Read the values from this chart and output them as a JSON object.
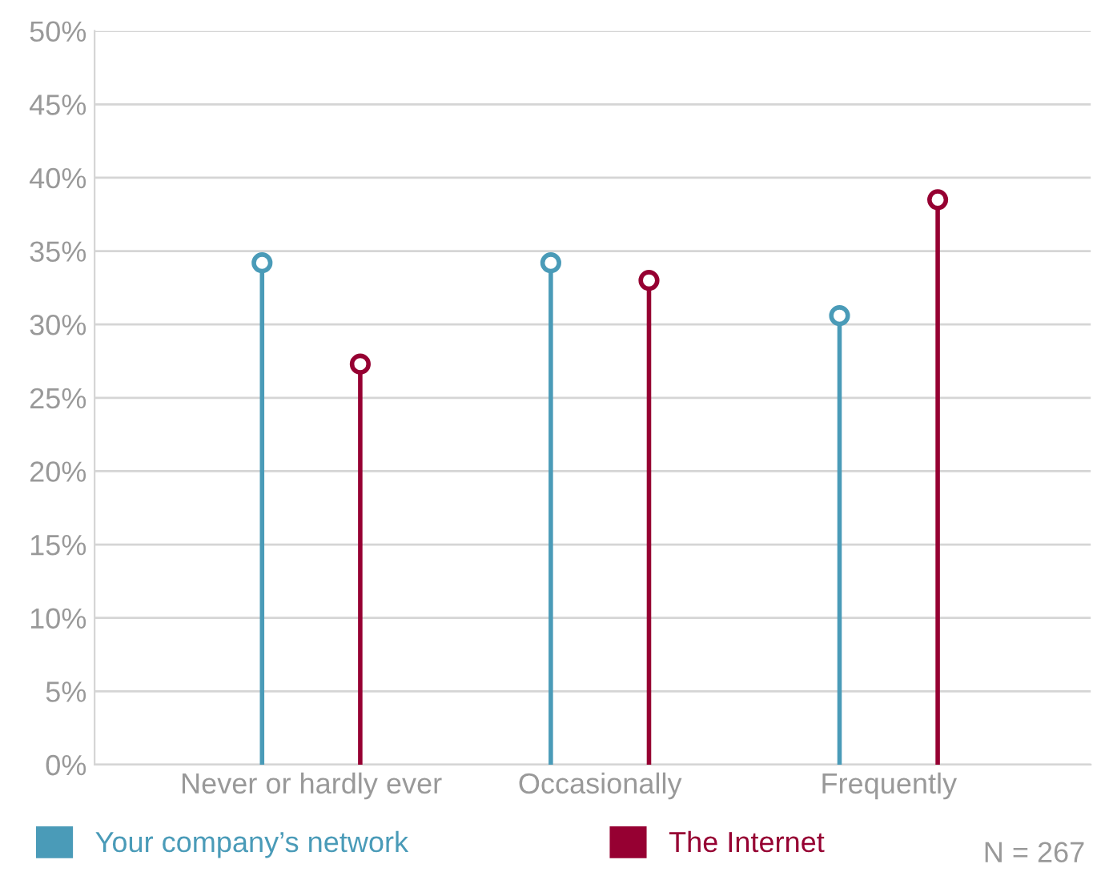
{
  "chart_data": {
    "type": "lollipop",
    "categories": [
      "Never or hardly ever",
      "Occasionally",
      "Frequently"
    ],
    "series": [
      {
        "name": "Your company’s network",
        "color": "#4a9bb8",
        "values": [
          34.2,
          34.2,
          30.6
        ]
      },
      {
        "name": "The Internet",
        "color": "#960032",
        "values": [
          27.3,
          33.0,
          38.5
        ]
      }
    ],
    "ylim": [
      0,
      50
    ],
    "yticks": [
      {
        "value": 0,
        "label": "0%"
      },
      {
        "value": 5,
        "label": "5%"
      },
      {
        "value": 10,
        "label": "10%"
      },
      {
        "value": 15,
        "label": "15%"
      },
      {
        "value": 20,
        "label": "20%"
      },
      {
        "value": 25,
        "label": "25%"
      },
      {
        "value": 30,
        "label": "30%"
      },
      {
        "value": 35,
        "label": "35%"
      },
      {
        "value": 40,
        "label": "40%"
      },
      {
        "value": 45,
        "label": "45%"
      },
      {
        "value": 50,
        "label": "50%"
      }
    ],
    "grid": "y",
    "legend": "bottom",
    "marker": "circle",
    "annotations": [
      "N = 267"
    ]
  }
}
